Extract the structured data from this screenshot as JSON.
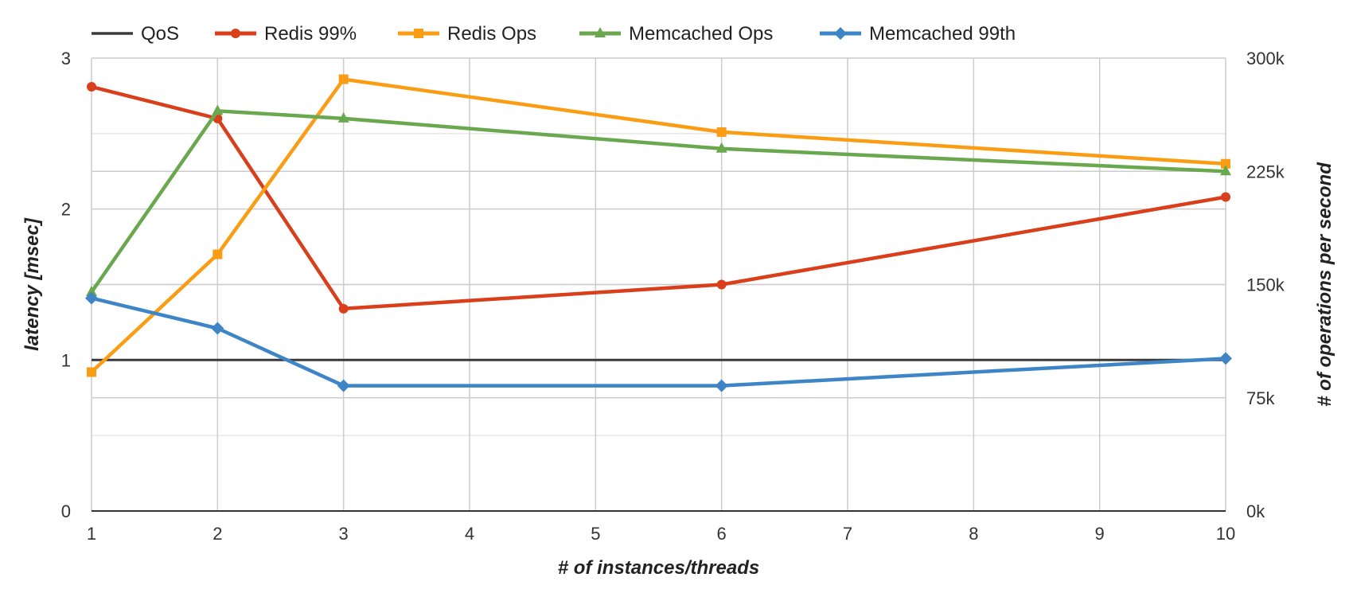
{
  "chart_data": {
    "type": "line",
    "x": [
      1,
      2,
      3,
      6,
      10
    ],
    "xlabel": "# of instances/threads",
    "xlim": [
      1,
      10
    ],
    "xticks": [
      "1",
      "2",
      "3",
      "4",
      "5",
      "6",
      "7",
      "8",
      "9",
      "10"
    ],
    "ylabel": "latency [msec]",
    "ylim": [
      0,
      3
    ],
    "yticks": [
      "0",
      "1",
      "2",
      "3"
    ],
    "y2label": "# of operations per second",
    "y2lim": [
      0,
      300000
    ],
    "y2ticks": [
      "0k",
      "75k",
      "150k",
      "225k",
      "300k"
    ],
    "grid": true,
    "legend": "top-left",
    "series": [
      {
        "name": "QoS",
        "axis": "left",
        "marker": "none",
        "color": "#3a3a3a",
        "values": [
          1,
          1,
          1,
          1,
          1
        ]
      },
      {
        "name": "Redis 99%",
        "axis": "left",
        "marker": "circle",
        "color": "#d93f1a",
        "values": [
          2.81,
          2.6,
          1.34,
          1.5,
          2.08
        ]
      },
      {
        "name": "Redis Ops",
        "axis": "right",
        "marker": "square",
        "color": "#fb9d14",
        "values": [
          92000,
          170000,
          286000,
          251000,
          230000
        ]
      },
      {
        "name": "Memcached Ops",
        "axis": "right",
        "marker": "triangle",
        "color": "#6aa84f",
        "values": [
          145000,
          265000,
          260000,
          240000,
          225000
        ]
      },
      {
        "name": "Memcached 99th",
        "axis": "left",
        "marker": "diamond",
        "color": "#3d85c6",
        "values": [
          1.41,
          1.21,
          0.83,
          0.83,
          1.01
        ]
      }
    ]
  }
}
